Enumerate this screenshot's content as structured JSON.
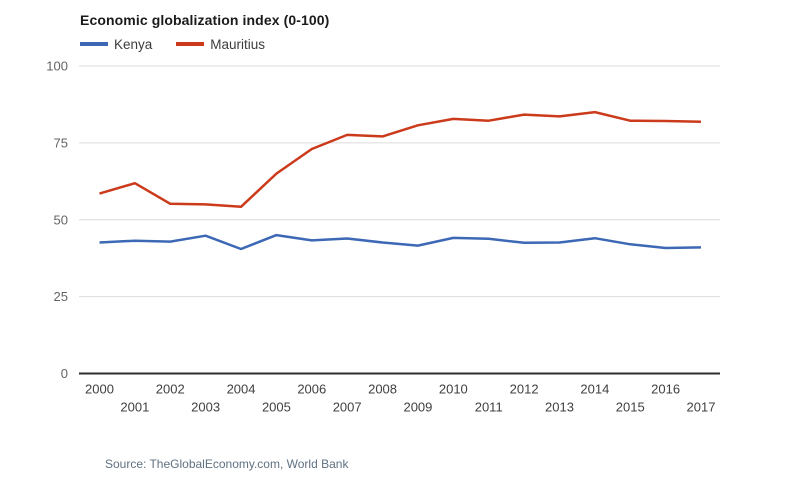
{
  "header": {
    "title": "Economic globalization index (0-100)"
  },
  "legend": {
    "items": [
      {
        "label": "Kenya",
        "color": "#3c68b5"
      },
      {
        "label": "Mauritius",
        "color": "#cb3a1b"
      }
    ]
  },
  "footer": {
    "source": "Source: TheGlobalEconomy.com, World Bank"
  },
  "colors": {
    "gridline": "#dcdcdc",
    "zero_axis": "#2e2e2e",
    "y_tick_label": "#646464",
    "x_tick_label": "#404040",
    "title": "#1a1a1a",
    "source": "#5f7181",
    "background": "#ffffff"
  },
  "chart_data": {
    "type": "line",
    "title": "Economic globalization index (0-100)",
    "xlabel": "",
    "ylabel": "",
    "x": [
      2000,
      2001,
      2002,
      2003,
      2004,
      2005,
      2006,
      2007,
      2008,
      2009,
      2010,
      2011,
      2012,
      2013,
      2014,
      2015,
      2016,
      2017
    ],
    "series": [
      {
        "name": "Kenya",
        "color": "#3c68b5",
        "values": [
          42.6,
          43.2,
          42.9,
          44.8,
          40.5,
          45.0,
          43.3,
          43.9,
          42.6,
          41.6,
          44.1,
          43.8,
          42.5,
          42.6,
          44.0,
          42.0,
          40.8,
          41.0
        ]
      },
      {
        "name": "Mauritius",
        "color": "#cb3a1b",
        "values": [
          58.5,
          61.9,
          55.2,
          55.0,
          54.2,
          65.0,
          73.0,
          77.6,
          77.1,
          80.7,
          82.8,
          82.2,
          84.2,
          83.6,
          85.0,
          82.2,
          82.1,
          81.9
        ]
      }
    ],
    "ylim": [
      0,
      100
    ],
    "yticks": [
      0,
      25,
      50,
      75,
      100
    ],
    "grid": "horizontal",
    "legend_position": "top-left",
    "source": "Source: TheGlobalEconomy.com, World Bank"
  }
}
